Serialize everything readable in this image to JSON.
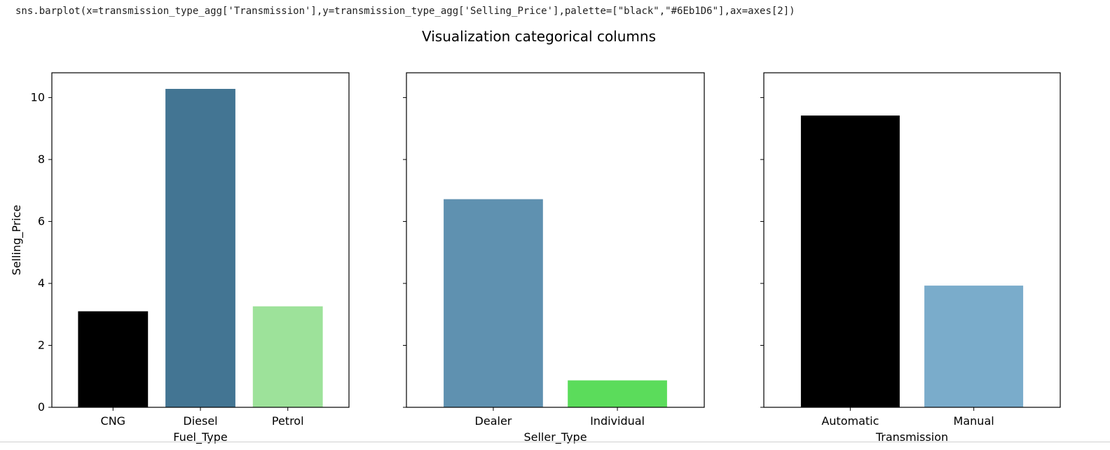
{
  "code": {
    "line": "sns.barplot(x=transmission_type_agg['Transmission'],y=transmission_type_agg['Selling_Price'],palette=[\"black\",\"#6Eb1D6\"],ax=axes[2])"
  },
  "figure": {
    "suptitle": "Visualization categorical columns"
  },
  "chart_data": [
    {
      "type": "bar",
      "xlabel": "Fuel_Type",
      "ylabel": "Selling_Price",
      "ylim": [
        0,
        10.8
      ],
      "yticks": [
        "0",
        "2",
        "4",
        "6",
        "8",
        "10"
      ],
      "categories": [
        "CNG",
        "Diesel",
        "Petrol"
      ],
      "values": [
        3.1,
        10.28,
        3.26
      ],
      "colors": [
        "#000000",
        "#437593",
        "#9de29a"
      ]
    },
    {
      "type": "bar",
      "xlabel": "Seller_Type",
      "ylabel": "",
      "ylim": [
        0,
        10.8
      ],
      "categories": [
        "Dealer",
        "Individual"
      ],
      "values": [
        6.72,
        0.87
      ],
      "colors": [
        "#5f91b0",
        "#5bdc5b"
      ]
    },
    {
      "type": "bar",
      "xlabel": "Transmission",
      "ylabel": "",
      "ylim": [
        0,
        10.8
      ],
      "categories": [
        "Automatic",
        "Manual"
      ],
      "values": [
        9.42,
        3.93
      ],
      "colors": [
        "#000000",
        "#7aaccb"
      ]
    }
  ]
}
